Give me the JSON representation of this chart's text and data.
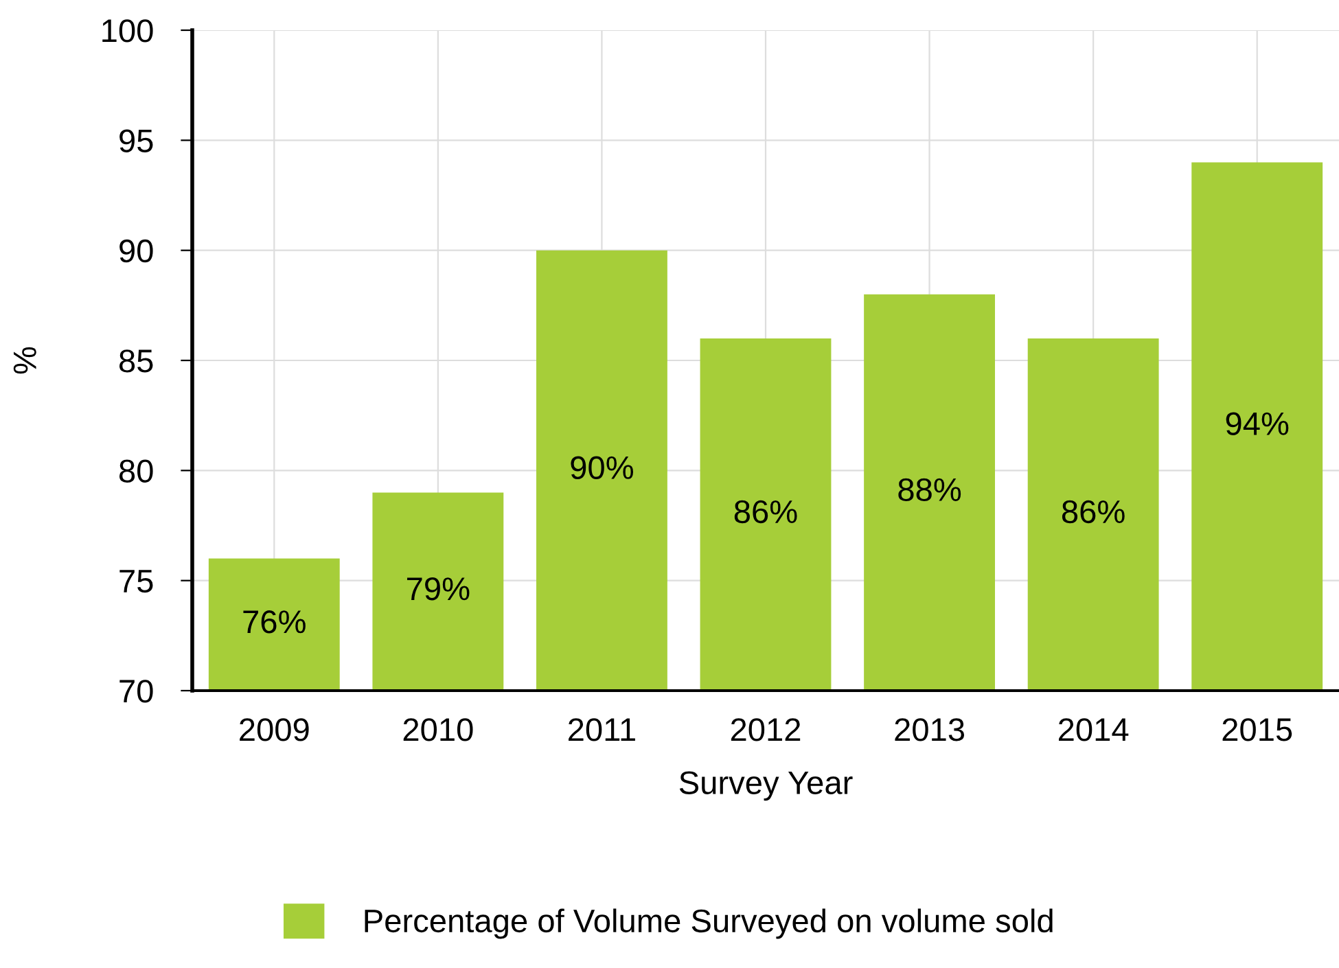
{
  "chart_data": {
    "type": "bar",
    "xlabel": "Survey Year",
    "ylabel": "%",
    "categories": [
      "2009",
      "2010",
      "2011",
      "2012",
      "2013",
      "2014",
      "2015"
    ],
    "series": [
      {
        "name": "Percentage of Volume Surveyed on volume sold",
        "color": "#a6ce39",
        "values": [
          76,
          79,
          90,
          86,
          88,
          86,
          94
        ],
        "value_labels": [
          "76%",
          "79%",
          "90%",
          "86%",
          "88%",
          "86%",
          "94%"
        ]
      }
    ],
    "ylim": [
      70,
      100
    ],
    "yticks": [
      70,
      75,
      80,
      85,
      90,
      95,
      100
    ],
    "grid": true,
    "legend": "bottom"
  }
}
